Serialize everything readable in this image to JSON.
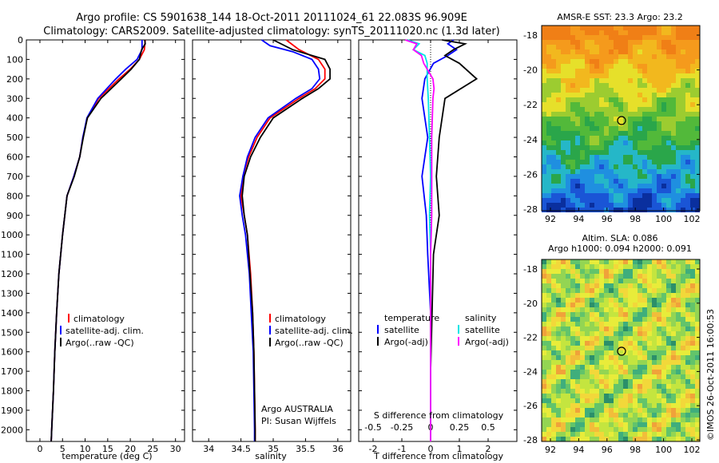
{
  "header": {
    "line1": "Argo profile: CS 5901638_144 18-Oct-2011 20111024_61 22.083S 96.909E",
    "line2": "Climatology: CARS2009. Satellite-adjusted climatology: synTS_20111020.nc (1.3d later)"
  },
  "colors": {
    "climatology": "#ff0000",
    "satellite": "#0000ff",
    "argo": "#000000",
    "salinity_satellite": "#00e5e5",
    "salinity_argo": "#ff00ff"
  },
  "depth_ticks": [
    "0",
    "100",
    "200",
    "300",
    "400",
    "500",
    "600",
    "700",
    "800",
    "900",
    "1000",
    "1100",
    "1200",
    "1300",
    "1400",
    "1500",
    "1600",
    "1700",
    "1800",
    "1900",
    "2000"
  ],
  "legend": {
    "climatology": "climatology",
    "satellite": "satellite-adj. clim.",
    "argo": "Argo(..raw -QC)"
  },
  "diff_legend": {
    "temperature": "temperature",
    "salinity": "salinity",
    "satellite": "satellite",
    "argo": "Argo(-adj)"
  },
  "credits": {
    "line1": "Argo AUSTRALIA",
    "line2": "PI: Susan Wijffels"
  },
  "imos_stamp": "©IMOS 26-Oct-2011 16:00:53",
  "sst_map": {
    "title": "AMSR-E SST: 23.3 Argo: 23.2",
    "y_ticks": [
      "-18",
      "-20",
      "-22",
      "-24",
      "-26",
      "-28"
    ],
    "x_ticks": [
      "92",
      "94",
      "96",
      "98",
      "100",
      "102"
    ]
  },
  "sla_map": {
    "title1": "Altim. SLA: 0.086",
    "title2": "Argo h1000: 0.094 h2000: 0.091",
    "y_ticks": [
      "-18",
      "-20",
      "-22",
      "-24",
      "-26",
      "-28"
    ],
    "x_ticks": [
      "92",
      "94",
      "96",
      "98",
      "100",
      "102"
    ]
  },
  "chart_data": [
    {
      "type": "line",
      "xlabel": "temperature (deg C)",
      "ylabel": "",
      "x_ticks": [
        "0",
        "5",
        "10",
        "15",
        "20",
        "25",
        "30"
      ],
      "xlim": [
        -3,
        32
      ],
      "ylim": [
        2060,
        0
      ],
      "series": [
        {
          "name": "climatology",
          "depth": [
            0,
            50,
            100,
            150,
            200,
            300,
            400,
            500,
            600,
            700,
            800,
            900,
            1000,
            1200,
            1400,
            1600,
            1800,
            2000,
            2060
          ],
          "values": [
            23.3,
            23.1,
            22.0,
            20.0,
            17.5,
            13.0,
            10.5,
            9.5,
            8.8,
            7.5,
            6.0,
            5.5,
            5.0,
            4.2,
            3.7,
            3.3,
            3.0,
            2.6,
            2.5
          ]
        },
        {
          "name": "satellite-adj. clim.",
          "depth": [
            0,
            50,
            100,
            150,
            200,
            300,
            400,
            500,
            600,
            700,
            800,
            900,
            1000,
            1200,
            1400,
            1600,
            1800,
            2000,
            2060
          ],
          "values": [
            22.6,
            22.6,
            21.5,
            19.0,
            16.8,
            12.8,
            10.4,
            9.5,
            8.8,
            7.5,
            6.0,
            5.5,
            5.0,
            4.2,
            3.7,
            3.3,
            3.0,
            2.6,
            2.5
          ]
        },
        {
          "name": "Argo(..raw -QC)",
          "depth": [
            0,
            20,
            50,
            100,
            150,
            200,
            300,
            400,
            500,
            600,
            700,
            800,
            900,
            1000,
            1200,
            1400,
            1600,
            1800,
            2000,
            2060
          ],
          "values": [
            23.2,
            23.3,
            22.5,
            22.0,
            20.2,
            18.0,
            13.5,
            10.5,
            9.6,
            8.8,
            7.6,
            6.0,
            5.5,
            5.0,
            4.2,
            3.7,
            3.3,
            3.0,
            2.6,
            2.5
          ]
        }
      ]
    },
    {
      "type": "line",
      "xlabel": "salinity",
      "ylabel": "",
      "x_ticks": [
        "34",
        "34.5",
        "35",
        "35.5",
        "36"
      ],
      "xlim": [
        33.75,
        36.2
      ],
      "ylim": [
        2060,
        0
      ],
      "series": [
        {
          "name": "climatology",
          "depth": [
            0,
            50,
            100,
            150,
            200,
            250,
            300,
            400,
            500,
            600,
            700,
            800,
            900,
            1000,
            1200,
            1400,
            1600,
            1800,
            2000,
            2060
          ],
          "values": [
            35.2,
            35.4,
            35.7,
            35.8,
            35.8,
            35.65,
            35.4,
            34.95,
            34.75,
            34.62,
            34.53,
            34.5,
            34.55,
            34.6,
            34.65,
            34.68,
            34.7,
            34.71,
            34.72,
            34.72
          ]
        },
        {
          "name": "satellite-adj. clim.",
          "depth": [
            0,
            30,
            60,
            100,
            150,
            200,
            250,
            300,
            400,
            500,
            600,
            700,
            800,
            900,
            1000,
            1200,
            1400,
            1600,
            1800,
            2000,
            2060
          ],
          "values": [
            34.82,
            34.95,
            35.3,
            35.6,
            35.7,
            35.72,
            35.6,
            35.35,
            34.92,
            34.72,
            34.6,
            34.53,
            34.48,
            34.52,
            34.57,
            34.63,
            34.66,
            34.69,
            34.7,
            34.71,
            34.71
          ]
        },
        {
          "name": "Argo(..raw -QC)",
          "depth": [
            0,
            50,
            100,
            150,
            200,
            250,
            300,
            400,
            500,
            600,
            700,
            800,
            900,
            1000,
            1200,
            1400,
            1600,
            1800,
            2000,
            2060
          ],
          "values": [
            35.0,
            35.3,
            35.8,
            35.88,
            35.88,
            35.7,
            35.45,
            35.0,
            34.8,
            34.65,
            34.55,
            34.52,
            34.55,
            34.6,
            34.64,
            34.68,
            34.7,
            34.71,
            34.72,
            34.72
          ]
        }
      ]
    },
    {
      "type": "line",
      "xlabel": "T difference from climatology",
      "title": "S difference from climatology",
      "x_ticks": [
        "-2",
        "-1",
        "0",
        "1",
        "2"
      ],
      "top_ticks": [
        "-0.5",
        "-0.25",
        "0",
        "0.25",
        "0.5"
      ],
      "xlim_T": [
        -2.5,
        3
      ],
      "xlim_S": [
        -0.625,
        0.75
      ],
      "ylim": [
        2060,
        0
      ],
      "series": [
        {
          "name": "temperature satellite",
          "depth": [
            0,
            20,
            50,
            80,
            120,
            200,
            300,
            500,
            700,
            900,
            1100,
            1400,
            1700,
            2000,
            2060
          ],
          "values": [
            0.8,
            0.6,
            0.9,
            0.6,
            0.1,
            -0.2,
            -0.3,
            -0.1,
            -0.3,
            -0.15,
            -0.1,
            0.0,
            0.0,
            0.0,
            0.0
          ]
        },
        {
          "name": "temperature Argo(-adj)",
          "depth": [
            0,
            20,
            50,
            80,
            120,
            200,
            300,
            500,
            700,
            900,
            1100,
            1400,
            1700,
            2000,
            2060
          ],
          "values": [
            0.4,
            1.2,
            0.8,
            0.5,
            1.0,
            1.6,
            0.5,
            0.3,
            0.2,
            0.3,
            0.1,
            0.05,
            0.0,
            0.0,
            0.0
          ]
        },
        {
          "name": "salinity satellite",
          "depth": [
            0,
            20,
            50,
            80,
            120,
            200,
            300,
            500,
            700,
            900,
            1100,
            1400,
            1700,
            2000,
            2060
          ],
          "values": [
            -0.2,
            -0.1,
            -0.15,
            -0.05,
            -0.03,
            -0.03,
            -0.02,
            -0.01,
            0.0,
            -0.01,
            0.0,
            0.0,
            0.0,
            0.0,
            0.0
          ]
        },
        {
          "name": "salinity Argo(-adj)",
          "depth": [
            0,
            20,
            50,
            80,
            120,
            200,
            250,
            300,
            500,
            700,
            900,
            1100,
            1400,
            1700,
            2000,
            2060
          ],
          "values": [
            -0.22,
            -0.12,
            -0.15,
            -0.08,
            -0.06,
            0.02,
            0.03,
            0.02,
            0.01,
            0.01,
            0.01,
            0.0,
            0.0,
            0.0,
            0.0,
            0.0
          ]
        }
      ]
    }
  ]
}
